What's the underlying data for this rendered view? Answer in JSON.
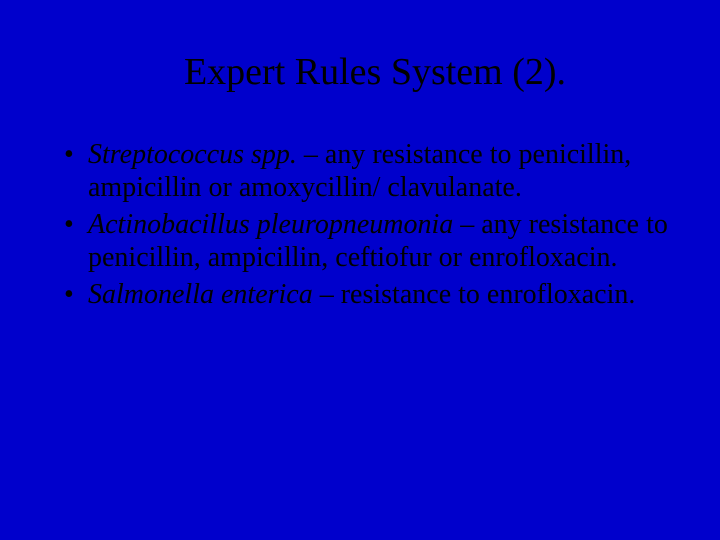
{
  "slide": {
    "title": "Expert Rules System (2).",
    "bullets": [
      {
        "italic": "Streptococcus spp.",
        "rest": " – any resistance to penicillin, ampicillin or amoxycillin/ clavulanate."
      },
      {
        "italic": "Actinobacillus pleuropneumonia",
        "rest": " – any resistance to penicillin, ampicillin, ceftiofur or enrofloxacin."
      },
      {
        "italic": "Salmonella enterica",
        "rest": " – resistance to enrofloxacin."
      }
    ],
    "background_color": "#0000cc",
    "text_color": "#000000",
    "title_fontsize": 38,
    "body_fontsize": 28,
    "font_family": "Times New Roman"
  }
}
